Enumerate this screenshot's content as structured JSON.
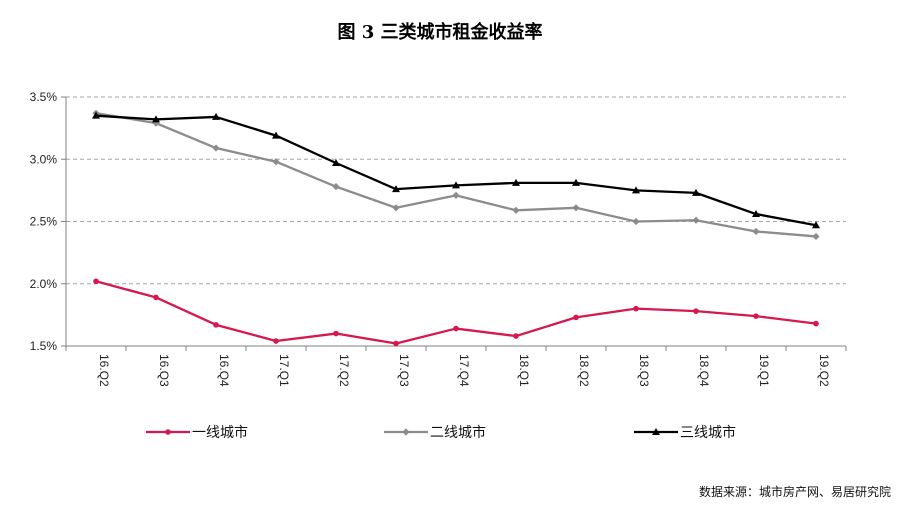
{
  "chart_data": {
    "type": "line",
    "title": "图 3 三类城市租金收益率",
    "categories": [
      "16.Q2",
      "16.Q3",
      "16.Q4",
      "17.Q1",
      "17.Q2",
      "17.Q3",
      "17.Q4",
      "18.Q1",
      "18.Q2",
      "18.Q3",
      "18.Q4",
      "19.Q1",
      "19.Q2"
    ],
    "ylim": [
      1.5,
      3.5
    ],
    "yticks": [
      "3.5%",
      "3.0%",
      "2.5%",
      "2.0%",
      "1.5%"
    ],
    "ytick_values": [
      3.5,
      3.0,
      2.5,
      2.0,
      1.5
    ],
    "grid": true,
    "legend_position": "bottom",
    "series": [
      {
        "name": "一线城市",
        "color": "#d6184f",
        "marker": "circle",
        "values": [
          2.02,
          1.89,
          1.67,
          1.54,
          1.6,
          1.52,
          1.64,
          1.58,
          1.73,
          1.8,
          1.78,
          1.74,
          1.68
        ]
      },
      {
        "name": "二线城市",
        "color": "#8c8c8c",
        "marker": "diamond",
        "values": [
          3.37,
          3.29,
          3.09,
          2.98,
          2.78,
          2.61,
          2.71,
          2.59,
          2.61,
          2.5,
          2.51,
          2.42,
          2.38
        ]
      },
      {
        "name": "三线城市",
        "color": "#000000",
        "marker": "triangle",
        "values": [
          3.35,
          3.32,
          3.34,
          3.19,
          2.97,
          2.76,
          2.79,
          2.81,
          2.81,
          2.75,
          2.73,
          2.56,
          2.47
        ]
      }
    ]
  },
  "source_note": "数据来源：城市房产网、易居研究院"
}
